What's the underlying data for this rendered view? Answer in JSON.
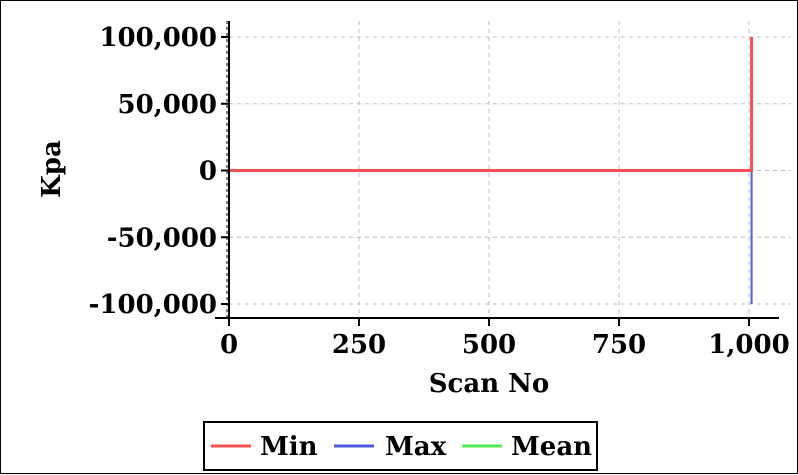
{
  "chart_data": {
    "type": "line",
    "xlabel": "Scan No",
    "ylabel": "Kpa",
    "xlim": [
      0,
      1000
    ],
    "ylim": [
      -100000,
      100000
    ],
    "x_ticks": [
      0,
      250,
      500,
      750,
      1000
    ],
    "x_tick_labels": [
      "0",
      "250",
      "500",
      "750",
      "1,000"
    ],
    "y_ticks": [
      100000,
      50000,
      0,
      -50000,
      -100000
    ],
    "y_tick_labels": [
      "100,000",
      "50,000",
      "0",
      "-50,000",
      "-100,000"
    ],
    "grid": true,
    "legend_position": "bottom-center",
    "series": [
      {
        "name": "Min",
        "color": "#f05050",
        "points": [
          [
            0,
            0
          ],
          [
            1005,
            0
          ],
          [
            1005,
            100000
          ]
        ]
      },
      {
        "name": "Max",
        "color": "#4f5bdc",
        "points": [
          [
            0,
            0
          ],
          [
            1005,
            0
          ],
          [
            1005,
            -100000
          ]
        ]
      },
      {
        "name": "Mean",
        "color": "#54e854",
        "points": [
          [
            0,
            0
          ],
          [
            1005,
            0
          ]
        ]
      }
    ]
  }
}
